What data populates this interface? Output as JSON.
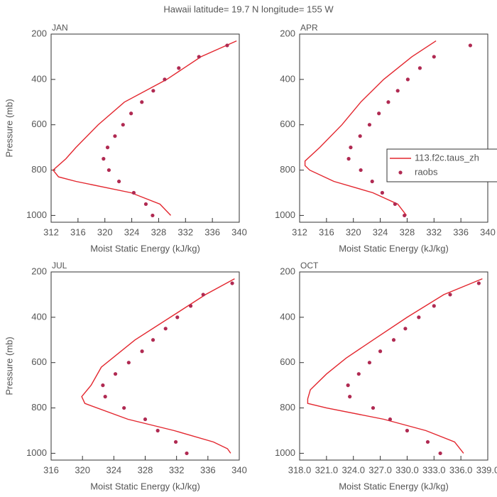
{
  "title": "Hawaii  latitude= 19.7 N longitude= 155 W",
  "chart_data": [
    {
      "type": "line",
      "label": "JAN",
      "xlabel": "Moist Static Energy (kJ/kg)",
      "ylabel": "Pressure (mb)",
      "xlim": [
        312,
        340
      ],
      "xticks": [
        312,
        316,
        320,
        324,
        328,
        332,
        336,
        340
      ],
      "ylim": [
        200,
        1030
      ],
      "yticks": [
        200,
        400,
        600,
        800,
        1000
      ],
      "y_reversed": true,
      "series": [
        {
          "kind": "line",
          "color": "#e3262e",
          "x": [
            339.6,
            334.3,
            329.2,
            322.9,
            319.0,
            315.7,
            314.2,
            312.3,
            313.1,
            315.7,
            323.9,
            328.2,
            329.8
          ],
          "y": [
            230,
            300,
            400,
            500,
            600,
            700,
            750,
            800,
            830,
            850,
            900,
            950,
            1000
          ]
        },
        {
          "kind": "scatter",
          "color": "#b02a52",
          "x": [
            338.2,
            334.0,
            331.0,
            328.9,
            327.2,
            325.5,
            323.9,
            322.7,
            321.5,
            320.4,
            319.8,
            320.6,
            322.1,
            324.3,
            326.1,
            327.1
          ],
          "y": [
            250,
            300,
            350,
            400,
            450,
            500,
            550,
            600,
            650,
            700,
            750,
            800,
            850,
            900,
            950,
            1000
          ]
        }
      ]
    },
    {
      "type": "line",
      "label": "APR",
      "xlabel": "Moist Static Energy (kJ/kg)",
      "xlim": [
        312,
        340
      ],
      "xticks": [
        312,
        316,
        320,
        324,
        328,
        332,
        336,
        340
      ],
      "ylim": [
        200,
        1030
      ],
      "yticks": [
        200,
        400,
        600,
        800,
        1000
      ],
      "y_reversed": true,
      "legend": true,
      "series": [
        {
          "kind": "line",
          "name": "113.f2c.taus_zh",
          "color": "#e3262e",
          "x": [
            332.3,
            328.7,
            324.5,
            321.1,
            318.3,
            315.0,
            312.8,
            312.8,
            313.5,
            317.1,
            322.9,
            326.6,
            327.9
          ],
          "y": [
            230,
            300,
            400,
            500,
            600,
            700,
            760,
            780,
            800,
            850,
            900,
            950,
            1000
          ]
        },
        {
          "kind": "scatter",
          "name": "raobs",
          "color": "#b02a52",
          "x": [
            337.4,
            332.0,
            329.9,
            328.1,
            326.6,
            325.2,
            323.8,
            322.4,
            321.0,
            319.6,
            319.3,
            321.1,
            322.8,
            324.3,
            326.2,
            327.6
          ],
          "y": [
            250,
            300,
            350,
            400,
            450,
            500,
            550,
            600,
            650,
            700,
            750,
            800,
            850,
            900,
            950,
            1000
          ]
        }
      ]
    },
    {
      "type": "line",
      "label": "JUL",
      "xlabel": "Moist Static Energy (kJ/kg)",
      "ylabel": "Pressure (mb)",
      "xlim": [
        316,
        340
      ],
      "xticks": [
        316,
        320,
        324,
        328,
        332,
        336,
        340
      ],
      "ylim": [
        200,
        1030
      ],
      "yticks": [
        200,
        400,
        600,
        800,
        1000
      ],
      "y_reversed": true,
      "series": [
        {
          "kind": "line",
          "color": "#e3262e",
          "x": [
            339.4,
            335.7,
            331.2,
            326.7,
            322.4,
            321.1,
            319.9,
            320.3,
            325.8,
            331.7,
            336.7,
            338.5,
            338.9
          ],
          "y": [
            230,
            300,
            400,
            500,
            620,
            700,
            750,
            780,
            850,
            900,
            950,
            980,
            1000
          ]
        },
        {
          "kind": "scatter",
          "color": "#b02a52",
          "x": [
            339.1,
            335.4,
            333.8,
            332.1,
            330.6,
            329.0,
            327.6,
            325.9,
            324.2,
            322.6,
            322.9,
            325.3,
            328.0,
            329.6,
            331.9,
            333.3
          ],
          "y": [
            250,
            300,
            350,
            400,
            450,
            500,
            550,
            600,
            650,
            700,
            750,
            800,
            850,
            900,
            950,
            1000
          ]
        }
      ]
    },
    {
      "type": "line",
      "label": "OCT",
      "xlabel": "Moist Static Energy (kJ/kg)",
      "xlim": [
        318,
        339
      ],
      "xticks": [
        {
          "value": 318,
          "label": "318.0"
        },
        {
          "value": 321,
          "label": "321.0"
        },
        {
          "value": 324,
          "label": "324.0"
        },
        {
          "value": 327,
          "label": "327.0"
        },
        {
          "value": 330,
          "label": "330.0"
        },
        {
          "value": 333,
          "label": "333.0"
        },
        {
          "value": 336,
          "label": "336.0"
        },
        {
          "value": 339,
          "label": "339.0"
        }
      ],
      "ylim": [
        200,
        1030
      ],
      "yticks": [
        200,
        400,
        600,
        800,
        1000
      ],
      "y_reversed": true,
      "series": [
        {
          "kind": "line",
          "color": "#e3262e",
          "x": [
            338.4,
            334.1,
            330.0,
            326.2,
            323.2,
            321.0,
            319.2,
            318.9,
            318.9,
            321.0,
            327.4,
            332.1,
            335.3,
            336.3
          ],
          "y": [
            230,
            300,
            400,
            500,
            580,
            650,
            720,
            760,
            780,
            800,
            850,
            900,
            950,
            1000
          ]
        },
        {
          "kind": "scatter",
          "color": "#b02a52",
          "x": [
            338.0,
            334.8,
            333.0,
            331.3,
            329.8,
            328.5,
            327.0,
            325.8,
            324.6,
            323.4,
            323.6,
            326.2,
            328.1,
            330.0,
            332.3,
            333.7
          ],
          "y": [
            250,
            300,
            350,
            400,
            450,
            500,
            550,
            600,
            650,
            700,
            750,
            800,
            850,
            900,
            950,
            1000
          ]
        }
      ]
    }
  ]
}
